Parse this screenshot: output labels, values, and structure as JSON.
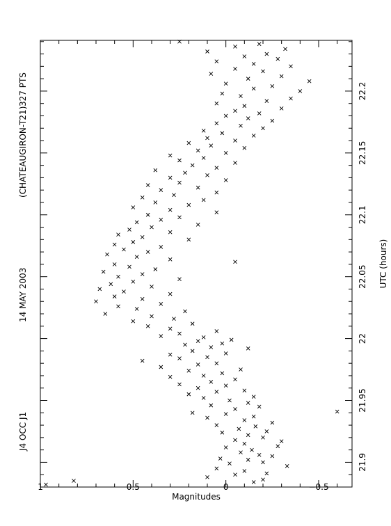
{
  "chart_data": {
    "type": "scatter",
    "header": [
      "J4 OCC J1",
      "14 MAY 2003",
      "(CHATEAUGIRON-T21)",
      "327 PTS"
    ],
    "xlabel": "UTC (hours)",
    "ylabel": "Magnitudes",
    "xlim": [
      21.88,
      22.241
    ],
    "ylim": [
      1,
      -0.68
    ],
    "x_ticks": [
      21.9,
      21.95,
      22,
      22.05,
      22.1,
      22.15,
      22.2
    ],
    "x_tick_labels": [
      "21.9",
      "21.95",
      "22",
      "22.05",
      "22.1",
      "22.15",
      "22.2"
    ],
    "y_ticks": [
      -0.5,
      0,
      0.5,
      1
    ],
    "y_tick_labels": [
      "−0.5",
      "0",
      "0.5",
      "1"
    ],
    "marker": "x",
    "points": [
      {
        "x": 21.882,
        "y": 0.97
      },
      {
        "x": 21.885,
        "y": 0.82
      },
      {
        "x": 21.884,
        "y": -0.15
      },
      {
        "x": 21.886,
        "y": -0.2
      },
      {
        "x": 21.888,
        "y": 0.1
      },
      {
        "x": 21.89,
        "y": -0.05
      },
      {
        "x": 21.891,
        "y": -0.22
      },
      {
        "x": 21.893,
        "y": -0.1
      },
      {
        "x": 21.895,
        "y": 0.05
      },
      {
        "x": 21.897,
        "y": -0.33
      },
      {
        "x": 21.899,
        "y": -0.02
      },
      {
        "x": 21.9,
        "y": -0.2
      },
      {
        "x": 21.902,
        "y": -0.12
      },
      {
        "x": 21.903,
        "y": 0.03
      },
      {
        "x": 21.905,
        "y": -0.25
      },
      {
        "x": 21.906,
        "y": -0.18
      },
      {
        "x": 21.908,
        "y": -0.08
      },
      {
        "x": 21.91,
        "y": -0.14
      },
      {
        "x": 21.912,
        "y": 0.0
      },
      {
        "x": 21.913,
        "y": -0.28
      },
      {
        "x": 21.915,
        "y": -0.1
      },
      {
        "x": 21.917,
        "y": -0.3
      },
      {
        "x": 21.918,
        "y": -0.05
      },
      {
        "x": 21.92,
        "y": -0.2
      },
      {
        "x": 21.922,
        "y": -0.12
      },
      {
        "x": 21.924,
        "y": 0.02
      },
      {
        "x": 21.925,
        "y": -0.22
      },
      {
        "x": 21.927,
        "y": -0.07
      },
      {
        "x": 21.929,
        "y": -0.16
      },
      {
        "x": 21.93,
        "y": 0.05
      },
      {
        "x": 21.932,
        "y": -0.25
      },
      {
        "x": 21.934,
        "y": -0.1
      },
      {
        "x": 21.936,
        "y": 0.1
      },
      {
        "x": 21.937,
        "y": -0.15
      },
      {
        "x": 21.939,
        "y": 0.0
      },
      {
        "x": 21.94,
        "y": 0.18
      },
      {
        "x": 21.941,
        "y": -0.6
      },
      {
        "x": 21.943,
        "y": -0.05
      },
      {
        "x": 21.945,
        "y": -0.18
      },
      {
        "x": 21.946,
        "y": 0.08
      },
      {
        "x": 21.948,
        "y": -0.12
      },
      {
        "x": 21.95,
        "y": -0.02
      },
      {
        "x": 21.952,
        "y": 0.12
      },
      {
        "x": 21.953,
        "y": -0.15
      },
      {
        "x": 21.955,
        "y": 0.2
      },
      {
        "x": 21.957,
        "y": 0.05
      },
      {
        "x": 21.958,
        "y": -0.1
      },
      {
        "x": 21.96,
        "y": 0.15
      },
      {
        "x": 21.962,
        "y": 0.0
      },
      {
        "x": 21.963,
        "y": 0.25
      },
      {
        "x": 21.965,
        "y": 0.08
      },
      {
        "x": 21.967,
        "y": -0.05
      },
      {
        "x": 21.969,
        "y": 0.3
      },
      {
        "x": 21.97,
        "y": 0.12
      },
      {
        "x": 21.972,
        "y": 0.02
      },
      {
        "x": 21.974,
        "y": 0.2
      },
      {
        "x": 21.975,
        "y": -0.08
      },
      {
        "x": 21.977,
        "y": 0.35
      },
      {
        "x": 21.979,
        "y": 0.15
      },
      {
        "x": 21.98,
        "y": 0.05
      },
      {
        "x": 21.982,
        "y": 0.45
      },
      {
        "x": 21.984,
        "y": 0.25
      },
      {
        "x": 21.985,
        "y": 0.1
      },
      {
        "x": 21.987,
        "y": 0.3
      },
      {
        "x": 21.988,
        "y": 0.0
      },
      {
        "x": 21.99,
        "y": 0.18
      },
      {
        "x": 21.992,
        "y": -0.12
      },
      {
        "x": 21.993,
        "y": 0.08
      },
      {
        "x": 21.995,
        "y": 0.22
      },
      {
        "x": 21.996,
        "y": 0.02
      },
      {
        "x": 21.998,
        "y": 0.15
      },
      {
        "x": 21.999,
        "y": -0.03
      },
      {
        "x": 22.001,
        "y": 0.12
      },
      {
        "x": 22.002,
        "y": 0.35
      },
      {
        "x": 22.004,
        "y": 0.25
      },
      {
        "x": 22.006,
        "y": 0.05
      },
      {
        "x": 22.008,
        "y": 0.3
      },
      {
        "x": 22.01,
        "y": 0.42
      },
      {
        "x": 22.012,
        "y": 0.18
      },
      {
        "x": 22.014,
        "y": 0.5
      },
      {
        "x": 22.016,
        "y": 0.28
      },
      {
        "x": 22.018,
        "y": 0.4
      },
      {
        "x": 22.02,
        "y": 0.65
      },
      {
        "x": 22.022,
        "y": 0.22
      },
      {
        "x": 22.024,
        "y": 0.48
      },
      {
        "x": 22.026,
        "y": 0.58
      },
      {
        "x": 22.028,
        "y": 0.35
      },
      {
        "x": 22.03,
        "y": 0.7
      },
      {
        "x": 22.032,
        "y": 0.45
      },
      {
        "x": 22.034,
        "y": 0.6
      },
      {
        "x": 22.036,
        "y": 0.3
      },
      {
        "x": 22.038,
        "y": 0.55
      },
      {
        "x": 22.04,
        "y": 0.68
      },
      {
        "x": 22.042,
        "y": 0.4
      },
      {
        "x": 22.044,
        "y": 0.62
      },
      {
        "x": 22.046,
        "y": 0.5
      },
      {
        "x": 22.048,
        "y": 0.25
      },
      {
        "x": 22.05,
        "y": 0.58
      },
      {
        "x": 22.052,
        "y": 0.45
      },
      {
        "x": 22.054,
        "y": 0.66
      },
      {
        "x": 22.056,
        "y": 0.38
      },
      {
        "x": 22.058,
        "y": 0.52
      },
      {
        "x": 22.06,
        "y": 0.6
      },
      {
        "x": 22.062,
        "y": -0.05
      },
      {
        "x": 22.064,
        "y": 0.3
      },
      {
        "x": 22.066,
        "y": 0.48
      },
      {
        "x": 22.068,
        "y": 0.64
      },
      {
        "x": 22.07,
        "y": 0.42
      },
      {
        "x": 22.072,
        "y": 0.55
      },
      {
        "x": 22.074,
        "y": 0.35
      },
      {
        "x": 22.076,
        "y": 0.6
      },
      {
        "x": 22.078,
        "y": 0.5
      },
      {
        "x": 22.08,
        "y": 0.2
      },
      {
        "x": 22.082,
        "y": 0.45
      },
      {
        "x": 22.084,
        "y": 0.58
      },
      {
        "x": 22.086,
        "y": 0.3
      },
      {
        "x": 22.088,
        "y": 0.52
      },
      {
        "x": 22.09,
        "y": 0.4
      },
      {
        "x": 22.092,
        "y": 0.15
      },
      {
        "x": 22.094,
        "y": 0.48
      },
      {
        "x": 22.096,
        "y": 0.35
      },
      {
        "x": 22.098,
        "y": 0.25
      },
      {
        "x": 22.1,
        "y": 0.42
      },
      {
        "x": 22.102,
        "y": 0.05
      },
      {
        "x": 22.104,
        "y": 0.3
      },
      {
        "x": 22.106,
        "y": 0.5
      },
      {
        "x": 22.108,
        "y": 0.2
      },
      {
        "x": 22.11,
        "y": 0.38
      },
      {
        "x": 22.112,
        "y": 0.12
      },
      {
        "x": 22.114,
        "y": 0.45
      },
      {
        "x": 22.116,
        "y": 0.28
      },
      {
        "x": 22.118,
        "y": 0.05
      },
      {
        "x": 22.12,
        "y": 0.35
      },
      {
        "x": 22.122,
        "y": 0.15
      },
      {
        "x": 22.124,
        "y": 0.42
      },
      {
        "x": 22.126,
        "y": 0.25
      },
      {
        "x": 22.128,
        "y": 0.0
      },
      {
        "x": 22.13,
        "y": 0.3
      },
      {
        "x": 22.132,
        "y": 0.1
      },
      {
        "x": 22.134,
        "y": 0.22
      },
      {
        "x": 22.136,
        "y": 0.38
      },
      {
        "x": 22.138,
        "y": 0.05
      },
      {
        "x": 22.14,
        "y": 0.18
      },
      {
        "x": 22.142,
        "y": -0.05
      },
      {
        "x": 22.144,
        "y": 0.25
      },
      {
        "x": 22.146,
        "y": 0.12
      },
      {
        "x": 22.148,
        "y": 0.3
      },
      {
        "x": 22.15,
        "y": 0.0
      },
      {
        "x": 22.152,
        "y": 0.15
      },
      {
        "x": 22.154,
        "y": -0.1
      },
      {
        "x": 22.156,
        "y": 0.08
      },
      {
        "x": 22.158,
        "y": 0.2
      },
      {
        "x": 22.16,
        "y": -0.05
      },
      {
        "x": 22.162,
        "y": 0.1
      },
      {
        "x": 22.164,
        "y": -0.15
      },
      {
        "x": 22.166,
        "y": 0.02
      },
      {
        "x": 22.168,
        "y": 0.12
      },
      {
        "x": 22.17,
        "y": -0.2
      },
      {
        "x": 22.172,
        "y": -0.08
      },
      {
        "x": 22.174,
        "y": 0.05
      },
      {
        "x": 22.176,
        "y": -0.25
      },
      {
        "x": 22.178,
        "y": -0.12
      },
      {
        "x": 22.18,
        "y": 0.0
      },
      {
        "x": 22.182,
        "y": -0.18
      },
      {
        "x": 22.184,
        "y": -0.05
      },
      {
        "x": 22.186,
        "y": -0.3
      },
      {
        "x": 22.188,
        "y": -0.1
      },
      {
        "x": 22.19,
        "y": 0.05
      },
      {
        "x": 22.192,
        "y": -0.22
      },
      {
        "x": 22.194,
        "y": -0.35
      },
      {
        "x": 22.196,
        "y": -0.08
      },
      {
        "x": 22.198,
        "y": 0.02
      },
      {
        "x": 22.2,
        "y": -0.4
      },
      {
        "x": 22.202,
        "y": -0.15
      },
      {
        "x": 22.204,
        "y": -0.25
      },
      {
        "x": 22.206,
        "y": 0.0
      },
      {
        "x": 22.208,
        "y": -0.45
      },
      {
        "x": 22.21,
        "y": -0.12
      },
      {
        "x": 22.212,
        "y": -0.3
      },
      {
        "x": 22.214,
        "y": 0.08
      },
      {
        "x": 22.216,
        "y": -0.2
      },
      {
        "x": 22.218,
        "y": -0.05
      },
      {
        "x": 22.22,
        "y": -0.35
      },
      {
        "x": 22.222,
        "y": -0.15
      },
      {
        "x": 22.224,
        "y": 0.05
      },
      {
        "x": 22.226,
        "y": -0.28
      },
      {
        "x": 22.228,
        "y": -0.1
      },
      {
        "x": 22.23,
        "y": -0.22
      },
      {
        "x": 22.232,
        "y": 0.1
      },
      {
        "x": 22.234,
        "y": -0.32
      },
      {
        "x": 22.236,
        "y": -0.05
      },
      {
        "x": 22.238,
        "y": -0.18
      },
      {
        "x": 22.24,
        "y": 0.25
      }
    ]
  }
}
